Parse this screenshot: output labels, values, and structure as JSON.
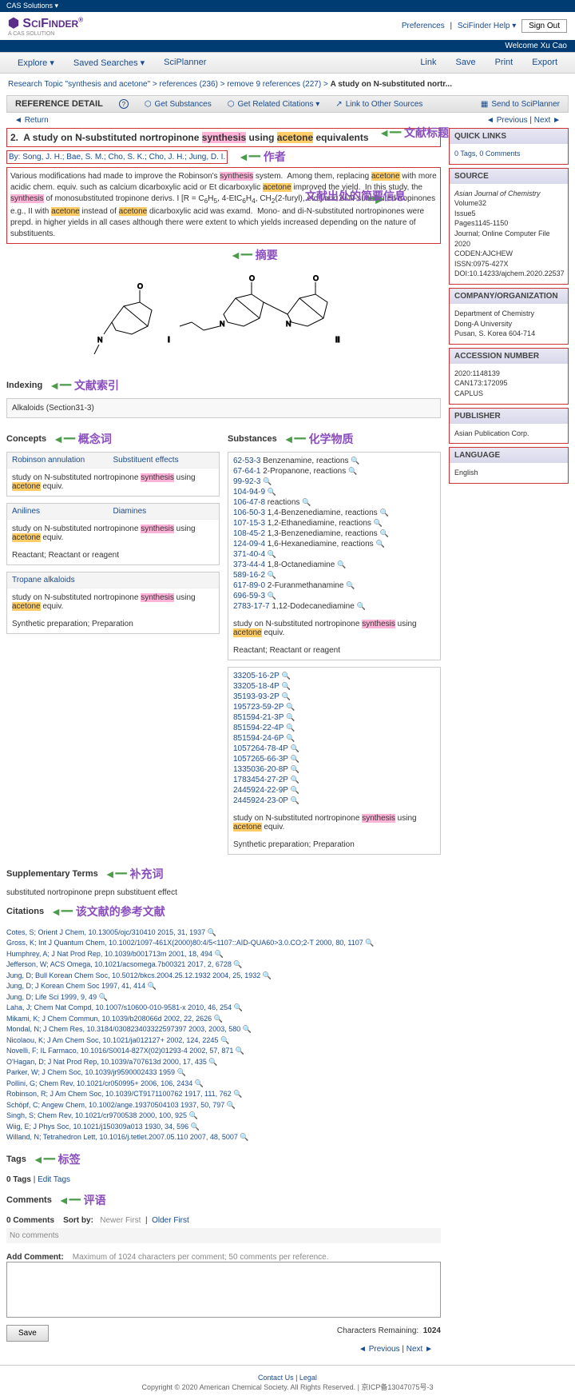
{
  "topstrip": "CAS Solutions ▾",
  "hdr": {
    "pref": "Preferences",
    "help": "SciFinder Help ▾",
    "signout": "Sign Out",
    "welcome": "Welcome Xu Cao"
  },
  "nav": {
    "l": [
      "Explore ▾",
      "Saved Searches ▾",
      "SciPlanner"
    ],
    "r": [
      "Link",
      "Save",
      "Print",
      "Export"
    ]
  },
  "bc": [
    "Research Topic \"synthesis and acetone\"",
    "references (236)",
    "remove 9 references (227)",
    "A study on N-substituted nortr..."
  ],
  "rd": {
    "title": "REFERENCE DETAIL",
    "subs": "Get Substances",
    "cit": "Get Related Citations ▾",
    "link": "Link to Other Sources",
    "send": "Send to SciPlanner"
  },
  "return": "Return",
  "prev": "Previous",
  "next": "Next",
  "title": "2.  A study on N-substituted nortropinone synthesis using acetone equivalents",
  "authors": "By: Song, J. H.; Bae, S. M.; Cho, S. K.; Cho, J. H.; Jung, D. I.",
  "abstract": "Various modifications had made to improve the Robinson's synthesis system.  Among them, replacing acetone with more acidic chem. equiv. such as calcium dicarboxylic acid or Et dicarboxylic acetone improved the yield.  In this study, the synthesis of monosubstituted tropinone derivs. I [R = C6H5, 4-EtC6H4, CH2(2-furyl), etc.] and di-N-substituted tropinones e.g., II with acetone instead of acetone dicarboxylic acid was examd.  Mono- and di-N-substituted nortropinones were prepd. in higher yields in all cases although there were extent to which yields increased depending on the nature of substituents.",
  "an": {
    "title": "文献标题",
    "auth": "作者",
    "abs": "摘要",
    "src": "文献出处的简要信息",
    "idx": "文献索引",
    "conc": "概念词",
    "subs": "化学物质",
    "supp": "补充词",
    "cit": "该文献的参考文献",
    "tags": "标签",
    "comm": "评语"
  },
  "idx": {
    "h": "Indexing",
    "v": "Alkaloids (Section31-3)"
  },
  "concepts": {
    "h": "Concepts",
    "rows": [
      {
        "links": [
          "Robinson annulation",
          "Substituent effects"
        ],
        "body": "study on N-substituted nortropinone synthesis using acetone equiv."
      },
      {
        "links": [
          "Anilines",
          "Diamines"
        ],
        "body": "study on N-substituted nortropinone synthesis using acetone equiv.",
        "role": "Reactant; Reactant or reagent"
      },
      {
        "links": [
          "Tropane alkaloids"
        ],
        "body": "study on N-substituted nortropinone synthesis using acetone equiv.",
        "role": "Synthetic preparation; Preparation"
      }
    ]
  },
  "substances": {
    "h": "Substances",
    "list": [
      [
        "62-53-3",
        "Benzenamine, reactions"
      ],
      [
        "67-64-1",
        "2-Propanone, reactions"
      ],
      [
        "99-92-3",
        ""
      ],
      [
        "104-94-9",
        ""
      ],
      [
        "106-47-8",
        "reactions"
      ],
      [
        "106-50-3",
        "1,4-Benzenediamine, reactions"
      ],
      [
        "107-15-3",
        "1,2-Ethanediamine, reactions"
      ],
      [
        "108-45-2",
        "1,3-Benzenediamine, reactions"
      ],
      [
        "124-09-4",
        "1,6-Hexanediamine, reactions"
      ],
      [
        "371-40-4",
        ""
      ],
      [
        "373-44-4",
        "1,8-Octanediamine"
      ],
      [
        "589-16-2",
        ""
      ],
      [
        "617-89-0",
        "2-Furanmethanamine"
      ],
      [
        "696-59-3",
        ""
      ],
      [
        "2783-17-7",
        "1,12-Dodecanediamine"
      ]
    ],
    "body1": "study on N-substituted nortropinone synthesis using acetone equiv.",
    "role1": "Reactant; Reactant or reagent",
    "list2": [
      "33205-16-2P",
      "33205-18-4P",
      "35193-93-2P",
      "195723-59-2P",
      "851594-21-3P",
      "851594-22-4P",
      "851594-24-6P",
      "1057264-78-4P",
      "1057265-66-3P",
      "1335036-20-8P",
      "1783454-27-2P",
      "2445924-22-9P",
      "2445924-23-0P"
    ],
    "body2": "study on N-substituted nortropinone synthesis using acetone equiv.",
    "role2": "Synthetic preparation; Preparation"
  },
  "supp": {
    "h": "Supplementary Terms",
    "v": "substituted nortropinone prepn substituent effect"
  },
  "citH": "Citations",
  "cites": [
    "Cotes, S; Orient J Chem, 10.13005/ojc/310410 2015, 31, 1937",
    "Gross, K; Int J Quantum Chem, 10.1002/1097-461X(2000)80:4/5<1107::AID-QUA60>3.0.CO;2-T 2000, 80, 1107",
    "Humphrey, A; J Nat Prod Rep, 10.1039/b001713m 2001, 18, 494",
    "Jefferson, W; ACS Omega, 10.1021/acsomega.7b00321 2017, 2, 6728",
    "Jung, D; Bull Korean Chem Soc, 10.5012/bkcs.2004.25.12.1932 2004, 25, 1932",
    "Jung, D; J Korean Chem Soc 1997, 41, 414",
    "Jung, D; Life Sci 1999, 9, 49",
    "Laha, J; Chem Nat Compd, 10.1007/s10600-010-9581-x 2010, 46, 254",
    "Mikami, K; J Chem Commun, 10.1039/b208066d 2002, 22, 2626",
    "Mondal, N; J Chem Res, 10.3184/030823403322597397 2003, 2003, 580",
    "Nicolaou, K; J Am Chem Soc, 10.1021/ja012127+ 2002, 124, 2245",
    "Novelli, F; IL Farmaco, 10.1016/S0014-827X(02)01293-4 2002, 57, 871",
    "O'Hagan, D; J Nat Prod Rep, 10.1039/a707613d 2000, 17, 435",
    "Parker, W; J Chem Soc, 10.1039/jr9590002433 1959",
    "Pollini, G; Chem Rev, 10.1021/cr050995+ 2006, 106, 2434",
    "Robinson, R; J Am Chem Soc, 10.1039/CT9171100762 1917, 111, 762",
    "Schöpf, C; Angew Chem, 10.1002/ange.19370504103 1937, 50, 797",
    "Singh, S; Chem Rev, 10.1021/cr9700538 2000, 100, 925",
    "Wiig, E; J Phys Soc, 10.1021/j150309a013 1930, 34, 596",
    "Willand, N; Tetrahedron Lett, 10.1016/j.tetlet.2007.05.110 2007, 48, 5007"
  ],
  "tags": {
    "h": "Tags",
    "line": "0 Tags",
    "edit": "Edit Tags"
  },
  "comm": {
    "h": "Comments",
    "zero": "0 Comments",
    "sort": "Sort by:",
    "nf": "Newer First",
    "of": "Older First",
    "none": "No comments",
    "add": "Add Comment:",
    "hint": "Maximum of 1024 characters per comment; 50 comments per reference.",
    "save": "Save",
    "rem": "Characters Remaining:",
    "n": "1024"
  },
  "ql": {
    "h": "QUICK LINKS",
    "v": "0 Tags, 0 Comments"
  },
  "src": {
    "h": "SOURCE",
    "l": [
      "Asian Journal of Chemistry",
      "Volume32",
      "Issue5",
      "Pages1145-1150",
      "Journal; Online Computer File",
      "2020",
      "CODEN:AJCHEW",
      "ISSN:0975-427X",
      "DOI:10.14233/ajchem.2020.22537"
    ]
  },
  "co": {
    "h": "COMPANY/ORGANIZATION",
    "l": [
      "Department of Chemistry",
      "Dong-A University",
      "Pusan, S. Korea  604-714"
    ]
  },
  "acc": {
    "h": "ACCESSION NUMBER",
    "l": [
      "2020:1148139",
      "CAN173:172095",
      "CAPLUS"
    ]
  },
  "pub": {
    "h": "PUBLISHER",
    "l": [
      "Asian Publication Corp."
    ]
  },
  "lang": {
    "h": "LANGUAGE",
    "l": [
      "English"
    ]
  },
  "foot": {
    "links": "Contact Us | Legal",
    "cp": "Copyright © 2020 American Chemical Society. All Rights Reserved.  |  京ICP备13047075号-3"
  }
}
